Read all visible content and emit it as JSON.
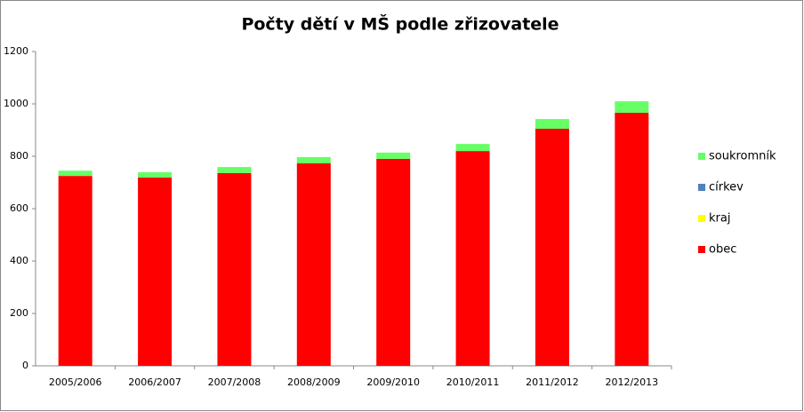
{
  "chart_data": {
    "type": "stacked_bar",
    "title": "Počty dětí v MŠ podle zřizovatele",
    "categories": [
      "2005/2006",
      "2006/2007",
      "2007/2008",
      "2008/2009",
      "2009/2010",
      "2010/2011",
      "2011/2012",
      "2012/2013"
    ],
    "series": [
      {
        "name": "obec",
        "color": "#ff0000",
        "values": [
          725,
          719,
          736,
          773,
          790,
          820,
          905,
          966
        ]
      },
      {
        "name": "kraj",
        "color": "#ffff00",
        "values": [
          0,
          0,
          0,
          0,
          0,
          0,
          0,
          0
        ]
      },
      {
        "name": "církev",
        "color": "#4f81bd",
        "values": [
          0,
          0,
          0,
          0,
          0,
          0,
          0,
          0
        ]
      },
      {
        "name": "soukromník",
        "color": "#66ff66",
        "values": [
          20,
          20,
          23,
          24,
          24,
          27,
          37,
          44
        ]
      }
    ],
    "ylim": [
      0,
      1200
    ],
    "yticks": [
      0,
      200,
      400,
      600,
      800,
      1000,
      1200
    ],
    "grid": false,
    "legend": "right"
  }
}
